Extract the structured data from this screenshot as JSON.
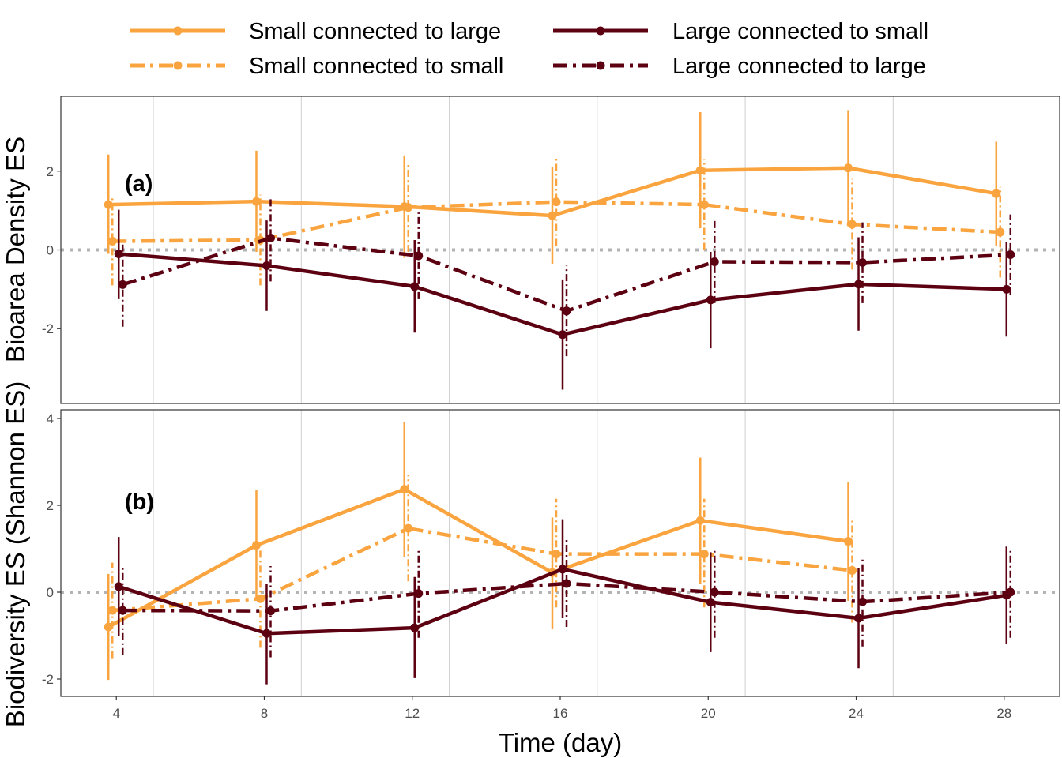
{
  "legend": [
    {
      "label": "Small connected to large",
      "color": "#f9a43e",
      "dash": "solid"
    },
    {
      "label": "Small connected to small",
      "color": "#f9a43e",
      "dash": "dashdot"
    },
    {
      "label": "Large connected to small",
      "color": "#5c0011",
      "dash": "solid"
    },
    {
      "label": "Large connected to large",
      "color": "#5c0011",
      "dash": "dashdot"
    }
  ],
  "x_axis": {
    "label": "Time (day)",
    "ticks": [
      4,
      8,
      12,
      16,
      20,
      24,
      28
    ],
    "range": [
      2.5,
      29.5
    ]
  },
  "colors": {
    "small": "#f9a43e",
    "large": "#5c0011",
    "reference_line": "#b3b3b3",
    "grid": "#d0d0d0"
  },
  "chart_data": [
    {
      "type": "line",
      "panel_label": "(a)",
      "ylabel": "Bioarea Density ES",
      "ylim": [
        -3.9,
        3.9
      ],
      "yticks": [
        -2,
        0,
        2
      ],
      "reference_line_y": 0,
      "grid": "vertical minor lines at 5, 9, 13, 17, 21, 25",
      "series": [
        {
          "name": "Small connected to large",
          "x": [
            4,
            8,
            12,
            16,
            20,
            24,
            28
          ],
          "y": [
            1.15,
            1.23,
            1.1,
            0.87,
            2.02,
            2.08,
            1.43
          ],
          "lower": [
            -0.1,
            -0.05,
            -0.2,
            -0.35,
            0.55,
            0.6,
            0.1
          ],
          "upper": [
            2.42,
            2.52,
            2.4,
            2.1,
            3.5,
            3.55,
            2.75
          ]
        },
        {
          "name": "Small connected to small",
          "x": [
            4,
            8,
            12,
            16,
            20,
            24,
            28
          ],
          "y": [
            0.22,
            0.25,
            1.08,
            1.22,
            1.15,
            0.65,
            0.45
          ],
          "lower": [
            -0.9,
            -0.9,
            -0.05,
            0.1,
            0.0,
            -0.5,
            -0.7
          ],
          "upper": [
            1.35,
            1.4,
            2.2,
            2.35,
            2.3,
            1.8,
            1.6
          ]
        },
        {
          "name": "Large connected to small",
          "x": [
            4,
            8,
            12,
            16,
            20,
            24,
            28
          ],
          "y": [
            -0.1,
            -0.4,
            -0.93,
            -2.15,
            -1.27,
            -0.87,
            -1.0
          ],
          "lower": [
            -1.25,
            -1.55,
            -2.1,
            -3.55,
            -2.5,
            -2.05,
            -2.2
          ],
          "upper": [
            1.02,
            0.75,
            0.25,
            -0.75,
            -0.05,
            0.32,
            0.2
          ]
        },
        {
          "name": "Large connected to large",
          "x": [
            4,
            8,
            12,
            16,
            20,
            24,
            28
          ],
          "y": [
            -0.88,
            0.3,
            -0.15,
            -1.55,
            -0.3,
            -0.32,
            -0.12
          ],
          "lower": [
            -1.95,
            -0.8,
            -1.25,
            -2.7,
            -1.35,
            -1.35,
            -1.15
          ],
          "upper": [
            0.2,
            1.35,
            0.95,
            -0.4,
            0.75,
            0.7,
            0.9
          ]
        }
      ]
    },
    {
      "type": "line",
      "panel_label": "(b)",
      "ylabel": "Biodiversity ES (Shannon ES)",
      "ylim": [
        -2.4,
        4.2
      ],
      "yticks": [
        -2,
        0,
        2,
        4
      ],
      "reference_line_y": 0,
      "grid": "vertical minor lines at 5, 9, 13, 17, 21, 25",
      "series": [
        {
          "name": "Small connected to large",
          "x": [
            4,
            8,
            12,
            16,
            20,
            24
          ],
          "y": [
            -0.8,
            1.08,
            2.37,
            0.45,
            1.65,
            1.17
          ],
          "lower": [
            -2.02,
            -0.2,
            0.8,
            -0.85,
            0.2,
            -0.2
          ],
          "upper": [
            0.42,
            2.35,
            3.92,
            1.72,
            3.1,
            2.53
          ]
        },
        {
          "name": "Small connected to small",
          "x": [
            4,
            8,
            12,
            16,
            20,
            24
          ],
          "y": [
            -0.42,
            -0.15,
            1.47,
            0.88,
            0.88,
            0.5
          ],
          "lower": [
            -1.52,
            -1.28,
            0.25,
            -0.35,
            -0.35,
            -0.7
          ],
          "upper": [
            0.68,
            1.0,
            2.7,
            2.15,
            2.15,
            1.72
          ]
        },
        {
          "name": "Large connected to small",
          "x": [
            4,
            8,
            12,
            16,
            20,
            24,
            28
          ],
          "y": [
            0.13,
            -0.95,
            -0.82,
            0.53,
            -0.23,
            -0.6,
            -0.07
          ],
          "lower": [
            -1.0,
            -2.12,
            -1.98,
            -0.6,
            -1.38,
            -1.75,
            -1.2
          ],
          "upper": [
            1.27,
            0.2,
            0.35,
            1.68,
            0.92,
            0.55,
            1.05
          ]
        },
        {
          "name": "Large connected to large",
          "x": [
            4,
            8,
            12,
            16,
            20,
            24,
            28
          ],
          "y": [
            -0.42,
            -0.43,
            -0.03,
            0.2,
            0.0,
            -0.22,
            0.0
          ],
          "lower": [
            -1.45,
            -1.5,
            -1.05,
            -0.8,
            -1.05,
            -1.25,
            -1.05
          ],
          "upper": [
            0.62,
            0.6,
            1.0,
            1.22,
            1.02,
            0.8,
            1.02
          ]
        }
      ]
    }
  ]
}
